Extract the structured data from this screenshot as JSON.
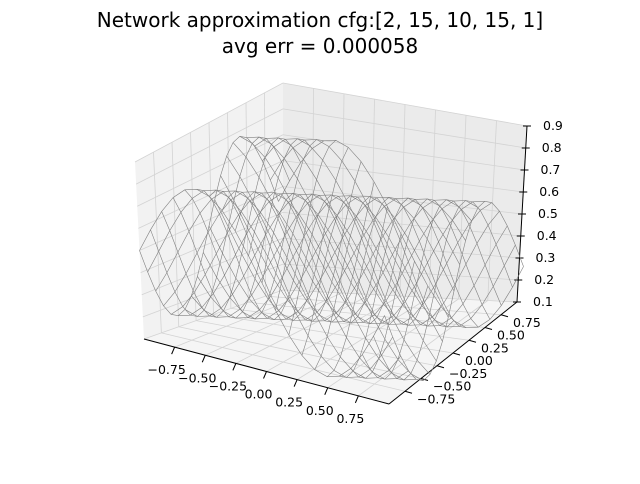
{
  "chart_data": {
    "type": "surface3d",
    "title": "Network approximation cfg:[2, 15, 10, 15, 1]",
    "subtitle": "avg err = 0.000058",
    "xlabel": "",
    "ylabel": "",
    "zlabel": "",
    "x_ticks": [
      "−0.75",
      "−0.50",
      "−0.25",
      "0.00",
      "0.25",
      "0.50",
      "0.75"
    ],
    "y_ticks": [
      "−0.75",
      "−0.50",
      "−0.25",
      "0.00",
      "0.25",
      "0.50",
      "0.75"
    ],
    "z_ticks": [
      "0.1",
      "0.2",
      "0.3",
      "0.4",
      "0.5",
      "0.6",
      "0.7",
      "0.8",
      "0.9"
    ],
    "x_range": [
      -1,
      1
    ],
    "y_range": [
      -1,
      1
    ],
    "z_range": [
      0.1,
      0.9
    ],
    "grid": true,
    "mesh_color": "#808080",
    "surface": "approx. 0.5 + 0.35·sin(π·(x − y)) sampled on a 21×21 grid over [−1,1]²"
  }
}
